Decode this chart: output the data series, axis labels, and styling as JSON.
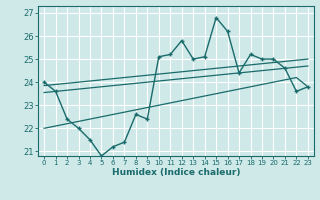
{
  "xlabel": "Humidex (Indice chaleur)",
  "ylabel": "",
  "background_color": "#cfe8e8",
  "line_color": "#1a6b6b",
  "grid_color": "#ffffff",
  "xlim": [
    -0.5,
    23.5
  ],
  "ylim": [
    20.8,
    27.3
  ],
  "xticks": [
    0,
    1,
    2,
    3,
    4,
    5,
    6,
    7,
    8,
    9,
    10,
    11,
    12,
    13,
    14,
    15,
    16,
    17,
    18,
    19,
    20,
    21,
    22,
    23
  ],
  "yticks": [
    21,
    22,
    23,
    24,
    25,
    26,
    27
  ],
  "main_series": [
    24.0,
    23.6,
    22.4,
    22.0,
    21.5,
    20.8,
    21.2,
    21.4,
    22.6,
    22.4,
    25.1,
    25.2,
    25.8,
    25.0,
    25.1,
    26.8,
    26.2,
    24.4,
    25.2,
    25.0,
    25.0,
    24.6,
    23.6,
    23.8
  ],
  "trend_upper": [
    23.85,
    23.9,
    23.95,
    24.0,
    24.05,
    24.1,
    24.15,
    24.2,
    24.25,
    24.3,
    24.35,
    24.4,
    24.45,
    24.5,
    24.55,
    24.6,
    24.65,
    24.7,
    24.75,
    24.8,
    24.85,
    24.9,
    24.95,
    25.0
  ],
  "trend_mid": [
    23.55,
    23.6,
    23.65,
    23.7,
    23.75,
    23.8,
    23.85,
    23.9,
    23.95,
    24.0,
    24.05,
    24.1,
    24.15,
    24.2,
    24.25,
    24.3,
    24.35,
    24.4,
    24.45,
    24.5,
    24.55,
    24.6,
    24.65,
    24.7
  ],
  "trend_lower": [
    22.0,
    22.1,
    22.2,
    22.3,
    22.4,
    22.5,
    22.6,
    22.7,
    22.8,
    22.9,
    23.0,
    23.1,
    23.2,
    23.3,
    23.4,
    23.5,
    23.6,
    23.7,
    23.8,
    23.9,
    24.0,
    24.1,
    24.2,
    23.8
  ]
}
